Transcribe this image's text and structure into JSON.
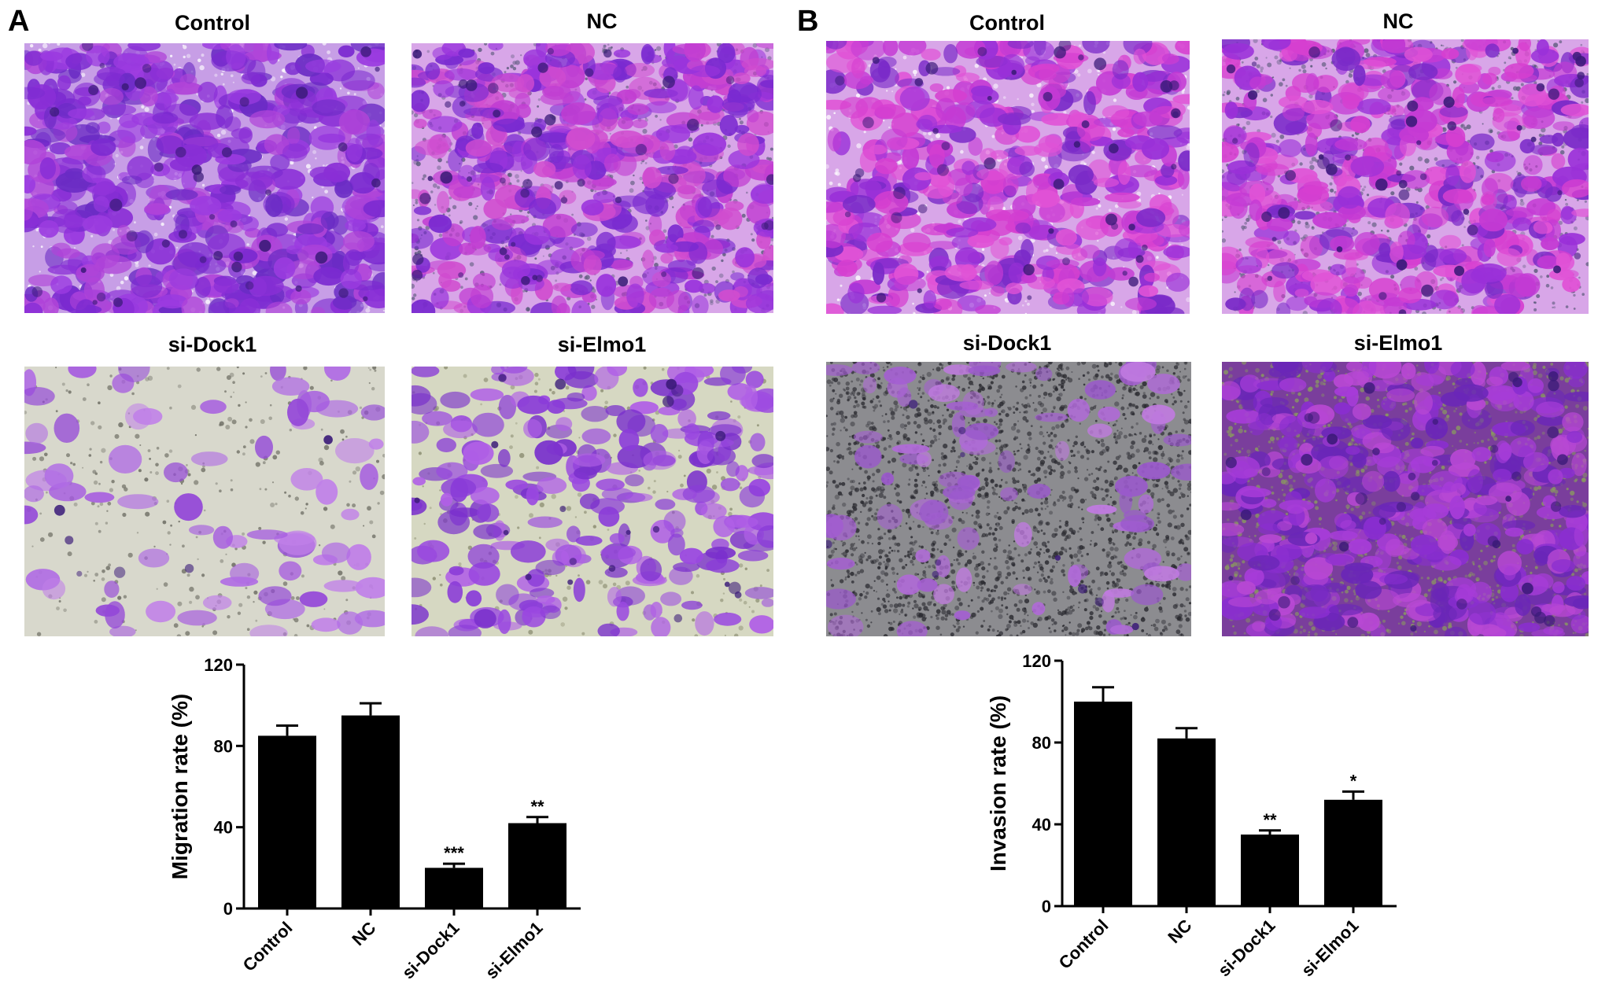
{
  "panels": [
    {
      "letter": "A",
      "image_labels": [
        "Control",
        "NC",
        "si-Dock1",
        "si-Elmo1"
      ]
    },
    {
      "letter": "B",
      "image_labels": [
        "Control",
        "NC",
        "si-Dock1",
        "si-Elmo1"
      ]
    }
  ],
  "colors": {
    "bar": "#000000",
    "stain_dense": "#8a2fd6",
    "stain_pink": "#d63fd0",
    "background_light": "#d8d8cc",
    "background_grey": "#8c8c90"
  },
  "chart_data": [
    {
      "type": "bar",
      "categories": [
        "Control",
        "NC",
        "si-Dock1",
        "si-Elmo1"
      ],
      "values": [
        85,
        95,
        20,
        42
      ],
      "errors": [
        5,
        6,
        2,
        3
      ],
      "significance": [
        "",
        "",
        "***",
        "**"
      ],
      "ylabel": "Migration rate  (%)",
      "ylim": [
        0,
        120
      ],
      "yticks": [
        0,
        40,
        80,
        120
      ]
    },
    {
      "type": "bar",
      "categories": [
        "Control",
        "NC",
        "si-Dock1",
        "si-Elmo1"
      ],
      "values": [
        100,
        82,
        35,
        52
      ],
      "errors": [
        7,
        5,
        2,
        4
      ],
      "significance": [
        "",
        "",
        "**",
        "*"
      ],
      "ylabel": "Invasion rate  (%)",
      "ylim": [
        0,
        120
      ],
      "yticks": [
        0,
        40,
        80,
        120
      ]
    }
  ]
}
